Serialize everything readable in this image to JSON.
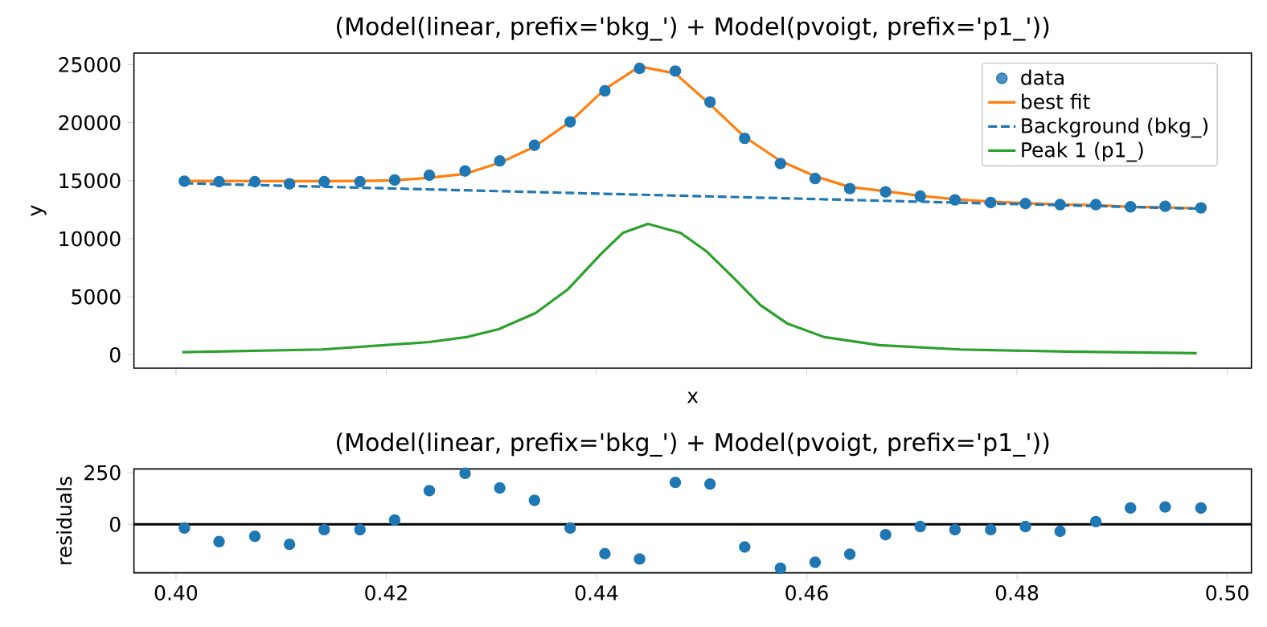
{
  "chart_data": [
    {
      "type": "scatter",
      "title": "(Model(linear, prefix='bkg_') + Model(pvoigt, prefix='p1_'))",
      "xlabel": "x",
      "ylabel": "y",
      "xlim": [
        0.396,
        0.5023
      ],
      "ylim": [
        -1150,
        26000
      ],
      "xticks": [
        {
          "value": 0.4,
          "label": null
        },
        {
          "value": 0.42,
          "label": null
        },
        {
          "value": 0.44,
          "label": null
        },
        {
          "value": 0.46,
          "label": null
        },
        {
          "value": 0.48,
          "label": null
        },
        {
          "value": 0.5,
          "label": null
        }
      ],
      "yticks": [
        0,
        5000,
        10000,
        15000,
        20000,
        25000
      ],
      "tick_labels": "y",
      "legend": "top right",
      "series": [
        {
          "name": "data",
          "type": "scatter",
          "marker": "circle",
          "color": "#1f77b4",
          "x": [
            0.4008,
            0.4041,
            0.4075,
            0.4108,
            0.4141,
            0.4175,
            0.4208,
            0.4241,
            0.4275,
            0.4308,
            0.4341,
            0.4375,
            0.4408,
            0.4441,
            0.4475,
            0.4508,
            0.4541,
            0.4575,
            0.4608,
            0.4641,
            0.4675,
            0.4708,
            0.4741,
            0.4775,
            0.4808,
            0.4841,
            0.4875,
            0.4908,
            0.4941,
            0.4975
          ],
          "values": [
            14960,
            14920,
            14920,
            14730,
            14920,
            14920,
            15060,
            15470,
            15840,
            16710,
            18050,
            20070,
            22740,
            24680,
            24450,
            21780,
            18650,
            16480,
            15190,
            14320,
            14040,
            13670,
            13350,
            13120,
            13030,
            12940,
            12940,
            12750,
            12800,
            12660
          ]
        },
        {
          "name": "best fit",
          "type": "line",
          "color": "#ff7f0e",
          "x": [
            0.4008,
            0.4041,
            0.4075,
            0.4108,
            0.4141,
            0.4175,
            0.4208,
            0.4241,
            0.4275,
            0.4308,
            0.4341,
            0.4375,
            0.4408,
            0.4441,
            0.4475,
            0.4508,
            0.4541,
            0.4575,
            0.4608,
            0.4641,
            0.4675,
            0.4708,
            0.4741,
            0.4775,
            0.4808,
            0.4841,
            0.4875,
            0.4908,
            0.4941,
            0.4975
          ],
          "values": [
            14980,
            14980,
            14970,
            14960,
            14960,
            14980,
            15030,
            15250,
            15590,
            16540,
            17930,
            20090,
            22890,
            24850,
            24240,
            21580,
            18760,
            16700,
            15380,
            14460,
            14090,
            13700,
            13400,
            13200,
            13060,
            12960,
            12900,
            12750,
            12700,
            12600
          ]
        },
        {
          "name": "Background (bkg_)",
          "type": "line",
          "line_style": "dashed",
          "color": "#1f77b4",
          "x": [
            0.4008,
            0.4974
          ],
          "values": [
            14780,
            12590
          ]
        },
        {
          "name": "Peak 1 (p1_)",
          "type": "line",
          "color": "#2ca02c",
          "x": [
            0.4006,
            0.4139,
            0.4241,
            0.4276,
            0.4307,
            0.4342,
            0.4373,
            0.4404,
            0.4425,
            0.4449,
            0.448,
            0.4505,
            0.4531,
            0.4556,
            0.4582,
            0.4617,
            0.4669,
            0.4746,
            0.4847,
            0.4971
          ],
          "values": [
            230,
            460,
            1100,
            1520,
            2210,
            3590,
            5660,
            8660,
            10500,
            11280,
            10500,
            8890,
            6580,
            4280,
            2670,
            1520,
            830,
            460,
            280,
            140
          ]
        }
      ]
    },
    {
      "type": "scatter",
      "title": "(Model(linear, prefix='bkg_') + Model(pvoigt, prefix='p1_'))",
      "ylabel": "residuals",
      "xlim": [
        0.396,
        0.5023
      ],
      "ylim": [
        -235,
        268
      ],
      "xticks": [
        {
          "value": 0.4,
          "label": "0.40"
        },
        {
          "value": 0.42,
          "label": "0.42"
        },
        {
          "value": 0.44,
          "label": "0.44"
        },
        {
          "value": 0.46,
          "label": "0.46"
        },
        {
          "value": 0.48,
          "label": "0.48"
        },
        {
          "value": 0.5,
          "label": "0.50"
        }
      ],
      "yticks": [
        0,
        250
      ],
      "marker": "circle",
      "color": "#1f77b4",
      "x": [
        0.4008,
        0.4041,
        0.4075,
        0.4108,
        0.4141,
        0.4175,
        0.4208,
        0.4241,
        0.4275,
        0.4308,
        0.4341,
        0.4375,
        0.4408,
        0.4441,
        0.4475,
        0.4508,
        0.4541,
        0.4575,
        0.4608,
        0.4641,
        0.4675,
        0.4708,
        0.4741,
        0.4775,
        0.4808,
        0.4841,
        0.4875,
        0.4908,
        0.4941,
        0.4975
      ],
      "values": [
        -18,
        -84,
        -58,
        -97,
        -26,
        -26,
        21,
        163,
        247,
        176,
        116,
        -18,
        -142,
        -168,
        203,
        195,
        -110,
        -213,
        -184,
        -145,
        -50,
        -11,
        -26,
        -26,
        -11,
        -34,
        13,
        79,
        84,
        79
      ],
      "ref_lines": [
        {
          "axis": "y",
          "value": 0,
          "color": "#000000"
        }
      ]
    }
  ]
}
